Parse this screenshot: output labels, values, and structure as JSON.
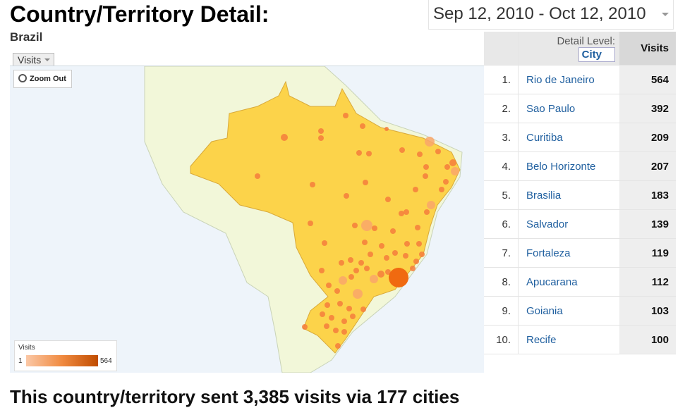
{
  "header": {
    "title": "Country/Territory Detail:",
    "subtitle": "Brazil",
    "date_range": "Sep 12, 2010 - Oct 12, 2010"
  },
  "map": {
    "tab": "Visits",
    "zoom_button": "Zoom Out",
    "legend": {
      "title": "Visits",
      "min": "1",
      "max": "564"
    }
  },
  "table": {
    "detail_label": "Detail Level:",
    "detail_value": "City",
    "visits_header": "Visits",
    "rows": [
      [
        "1.",
        "Rio de Janeiro",
        564
      ],
      [
        "2.",
        "Sao Paulo",
        392
      ],
      [
        "3.",
        "Curitiba",
        209
      ],
      [
        "4.",
        "Belo Horizonte",
        207
      ],
      [
        "5.",
        "Brasilia",
        183
      ],
      [
        "6.",
        "Salvador",
        139
      ],
      [
        "7.",
        "Fortaleza",
        119
      ],
      [
        "8.",
        "Apucarana",
        112
      ],
      [
        "9.",
        "Goiania",
        103
      ],
      [
        "10.",
        "Recife",
        100
      ]
    ]
  },
  "footer": "This country/territory sent 3,385 visits via 177 cities"
}
